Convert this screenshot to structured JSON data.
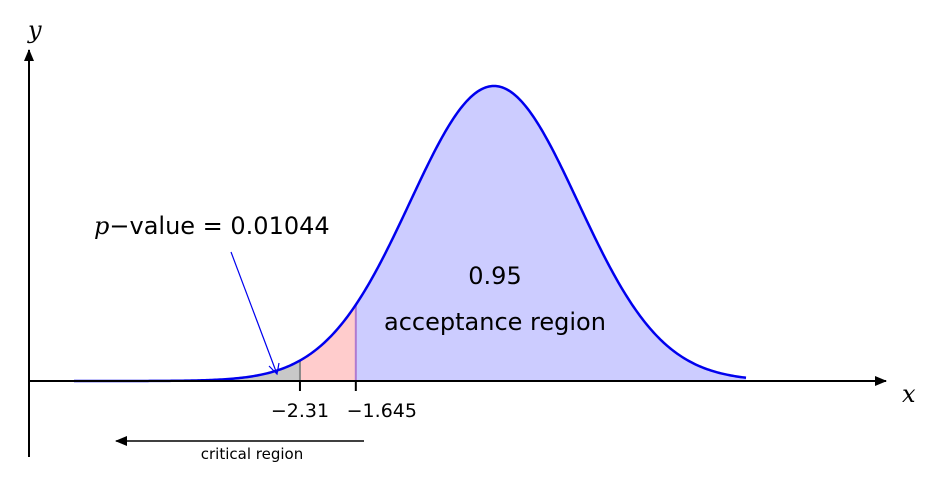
{
  "chart_data": {
    "type": "area",
    "title": "",
    "xlabel": "x",
    "ylabel": "y",
    "distribution": "normal",
    "mean": 0,
    "sd": 1,
    "xlim": [
      -5,
      3
    ],
    "ticks": [
      "−2.31",
      "−1.645"
    ],
    "tick_values": [
      -2.31,
      -1.645
    ],
    "regions": [
      {
        "name": "p-value tail",
        "from": -5,
        "to": -2.31,
        "color": "#c8c8c8"
      },
      {
        "name": "critical region",
        "from": -2.31,
        "to": -1.645,
        "color": "#ffcccc"
      },
      {
        "name": "acceptance region",
        "from": -1.645,
        "to": 3,
        "color": "#ccccff"
      }
    ],
    "curve_color": "#0000ee",
    "annotations": {
      "p_value_prefix": "p",
      "p_value_text": "−value = 0.01044",
      "acceptance_prob": "0.95",
      "acceptance_label": "acceptance region",
      "critical_label": "critical region"
    }
  }
}
